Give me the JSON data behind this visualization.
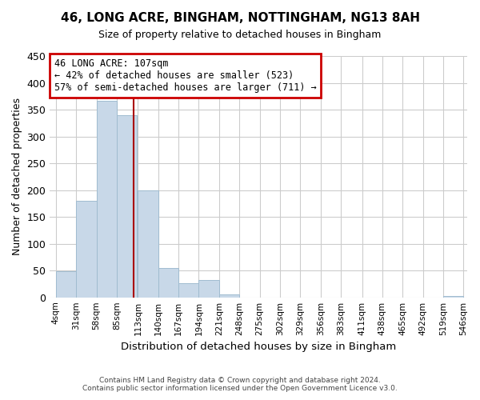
{
  "title": "46, LONG ACRE, BINGHAM, NOTTINGHAM, NG13 8AH",
  "subtitle": "Size of property relative to detached houses in Bingham",
  "xlabel": "Distribution of detached houses by size in Bingham",
  "ylabel": "Number of detached properties",
  "bar_color": "#c8d8e8",
  "bar_edge_color": "#a0bcd0",
  "background_color": "#ffffff",
  "grid_color": "#cccccc",
  "vline_value": 107,
  "vline_color": "#aa0000",
  "annotation_line1": "46 LONG ACRE: 107sqm",
  "annotation_line2": "← 42% of detached houses are smaller (523)",
  "annotation_line3": "57% of semi-detached houses are larger (711) →",
  "annotation_box_color": "#cc0000",
  "bin_edges": [
    4,
    31,
    58,
    85,
    113,
    140,
    167,
    194,
    221,
    248,
    275,
    302,
    329,
    356,
    383,
    411,
    438,
    465,
    492,
    519,
    546
  ],
  "bin_heights": [
    49,
    180,
    367,
    340,
    200,
    55,
    26,
    33,
    6,
    0,
    0,
    0,
    0,
    0,
    0,
    0,
    0,
    0,
    0,
    2
  ],
  "ylim": [
    0,
    450
  ],
  "yticks": [
    0,
    50,
    100,
    150,
    200,
    250,
    300,
    350,
    400,
    450
  ],
  "footer_line1": "Contains HM Land Registry data © Crown copyright and database right 2024.",
  "footer_line2": "Contains public sector information licensed under the Open Government Licence v3.0."
}
